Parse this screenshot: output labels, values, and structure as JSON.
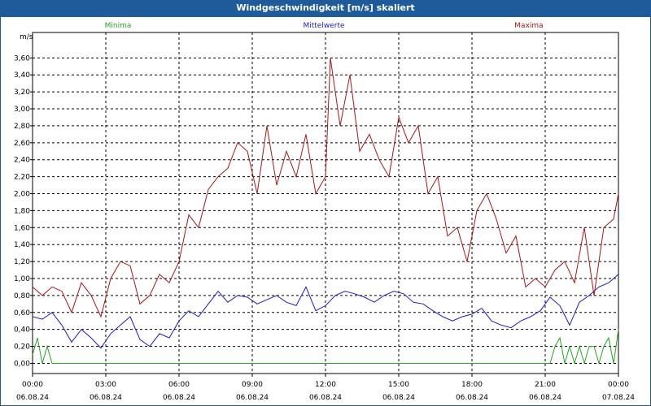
{
  "chart_data": {
    "type": "line",
    "title": "Windgeschwindigkeit [m/s] skaliert",
    "y_unit": "m/s",
    "ylim": [
      -0.12,
      3.9
    ],
    "y_ticks": [
      "0,00",
      "0,20",
      "0,40",
      "0,60",
      "0,80",
      "1,00",
      "1,20",
      "1,40",
      "1,60",
      "1,80",
      "2,00",
      "2,20",
      "2,40",
      "2,60",
      "2,80",
      "3,00",
      "3,20",
      "3,40",
      "3,60"
    ],
    "x_range": [
      "06.08.24 00:00",
      "07.08.24 00:00"
    ],
    "x_ticks": [
      {
        "time": "00:00",
        "date": "06.08.24"
      },
      {
        "time": "03:00",
        "date": "06.08.24"
      },
      {
        "time": "06:00",
        "date": "06.08.24"
      },
      {
        "time": "09:00",
        "date": "06.08.24"
      },
      {
        "time": "12:00",
        "date": "06.08.24"
      },
      {
        "time": "15:00",
        "date": "06.08.24"
      },
      {
        "time": "18:00",
        "date": "06.08.24"
      },
      {
        "time": "21:00",
        "date": "06.08.24"
      },
      {
        "time": "00:00",
        "date": "07.08.24"
      }
    ],
    "grid": true,
    "legend_position": "top",
    "series": [
      {
        "name": "Minima",
        "color": "#22aa22",
        "x": [
          "06.08.24 00:00",
          "06.08.24 00:12",
          "06.08.24 00:24",
          "06.08.24 00:36",
          "06.08.24 00:48",
          "06.08.24 01:00",
          "06.08.24 01:30",
          "06.08.24 02:00",
          "06.08.24 03:00",
          "06.08.24 06:00",
          "06.08.24 09:00",
          "06.08.24 12:00",
          "06.08.24 15:00",
          "06.08.24 18:00",
          "06.08.24 21:00",
          "06.08.24 21:12",
          "06.08.24 21:24",
          "06.08.24 21:36",
          "06.08.24 21:48",
          "06.08.24 22:00",
          "06.08.24 22:12",
          "06.08.24 22:24",
          "06.08.24 22:36",
          "06.08.24 22:48",
          "06.08.24 23:00",
          "06.08.24 23:12",
          "06.08.24 23:24",
          "06.08.24 23:36",
          "06.08.24 23:48",
          "07.08.24 00:00"
        ],
        "y": [
          0.1,
          0.3,
          0.0,
          0.2,
          0.0,
          0.0,
          0.0,
          0.0,
          0.0,
          0.0,
          0.0,
          0.0,
          0.0,
          0.0,
          0.0,
          0.0,
          0.2,
          0.3,
          0.0,
          0.2,
          0.0,
          0.2,
          0.0,
          0.2,
          0.2,
          0.0,
          0.2,
          0.3,
          0.0,
          0.4
        ]
      },
      {
        "name": "Mittelwerte",
        "color": "#1a1acc",
        "x": [
          "06.08.24 00:00",
          "06.08.24 00:24",
          "06.08.24 00:48",
          "06.08.24 01:12",
          "06.08.24 01:36",
          "06.08.24 02:00",
          "06.08.24 02:24",
          "06.08.24 02:48",
          "06.08.24 03:12",
          "06.08.24 03:36",
          "06.08.24 04:00",
          "06.08.24 04:24",
          "06.08.24 04:48",
          "06.08.24 05:12",
          "06.08.24 05:36",
          "06.08.24 06:00",
          "06.08.24 06:24",
          "06.08.24 06:48",
          "06.08.24 07:12",
          "06.08.24 07:36",
          "06.08.24 08:00",
          "06.08.24 08:24",
          "06.08.24 08:48",
          "06.08.24 09:12",
          "06.08.24 09:36",
          "06.08.24 10:00",
          "06.08.24 10:24",
          "06.08.24 10:48",
          "06.08.24 11:12",
          "06.08.24 11:36",
          "06.08.24 12:00",
          "06.08.24 12:24",
          "06.08.24 12:48",
          "06.08.24 13:12",
          "06.08.24 13:36",
          "06.08.24 14:00",
          "06.08.24 14:24",
          "06.08.24 14:48",
          "06.08.24 15:12",
          "06.08.24 15:36",
          "06.08.24 16:00",
          "06.08.24 16:24",
          "06.08.24 16:48",
          "06.08.24 17:12",
          "06.08.24 17:36",
          "06.08.24 18:00",
          "06.08.24 18:24",
          "06.08.24 18:48",
          "06.08.24 19:12",
          "06.08.24 19:36",
          "06.08.24 20:00",
          "06.08.24 20:24",
          "06.08.24 20:48",
          "06.08.24 21:12",
          "06.08.24 21:36",
          "06.08.24 22:00",
          "06.08.24 22:24",
          "06.08.24 22:48",
          "06.08.24 23:12",
          "06.08.24 23:36",
          "07.08.24 00:00"
        ],
        "y": [
          0.55,
          0.52,
          0.6,
          0.45,
          0.25,
          0.4,
          0.3,
          0.18,
          0.35,
          0.45,
          0.55,
          0.28,
          0.2,
          0.35,
          0.3,
          0.5,
          0.62,
          0.55,
          0.7,
          0.85,
          0.72,
          0.8,
          0.78,
          0.7,
          0.75,
          0.8,
          0.72,
          0.68,
          0.9,
          0.62,
          0.68,
          0.8,
          0.85,
          0.82,
          0.78,
          0.72,
          0.8,
          0.85,
          0.82,
          0.72,
          0.7,
          0.62,
          0.55,
          0.5,
          0.55,
          0.58,
          0.65,
          0.5,
          0.45,
          0.42,
          0.5,
          0.55,
          0.62,
          0.78,
          0.68,
          0.45,
          0.72,
          0.8,
          0.9,
          0.95,
          1.05
        ]
      },
      {
        "name": "Maxima",
        "color": "#aa1515",
        "x": [
          "06.08.24 00:00",
          "06.08.24 00:24",
          "06.08.24 00:48",
          "06.08.24 01:12",
          "06.08.24 01:36",
          "06.08.24 02:00",
          "06.08.24 02:24",
          "06.08.24 02:48",
          "06.08.24 03:12",
          "06.08.24 03:36",
          "06.08.24 04:00",
          "06.08.24 04:24",
          "06.08.24 04:48",
          "06.08.24 05:12",
          "06.08.24 05:36",
          "06.08.24 06:00",
          "06.08.24 06:24",
          "06.08.24 06:48",
          "06.08.24 07:12",
          "06.08.24 07:36",
          "06.08.24 08:00",
          "06.08.24 08:24",
          "06.08.24 08:48",
          "06.08.24 09:12",
          "06.08.24 09:36",
          "06.08.24 10:00",
          "06.08.24 10:24",
          "06.08.24 10:48",
          "06.08.24 11:12",
          "06.08.24 11:36",
          "06.08.24 12:00",
          "06.08.24 12:12",
          "06.08.24 12:36",
          "06.08.24 13:00",
          "06.08.24 13:24",
          "06.08.24 13:48",
          "06.08.24 14:12",
          "06.08.24 14:36",
          "06.08.24 15:00",
          "06.08.24 15:24",
          "06.08.24 15:48",
          "06.08.24 16:12",
          "06.08.24 16:36",
          "06.08.24 17:00",
          "06.08.24 17:24",
          "06.08.24 17:48",
          "06.08.24 18:12",
          "06.08.24 18:36",
          "06.08.24 19:00",
          "06.08.24 19:24",
          "06.08.24 19:48",
          "06.08.24 20:12",
          "06.08.24 20:36",
          "06.08.24 21:00",
          "06.08.24 21:24",
          "06.08.24 21:48",
          "06.08.24 22:12",
          "06.08.24 22:36",
          "06.08.24 23:00",
          "06.08.24 23:24",
          "06.08.24 23:48",
          "07.08.24 00:00"
        ],
        "y": [
          0.9,
          0.8,
          0.9,
          0.85,
          0.6,
          0.95,
          0.8,
          0.55,
          1.0,
          1.2,
          1.15,
          0.7,
          0.8,
          1.05,
          0.95,
          1.2,
          1.75,
          1.6,
          2.05,
          2.2,
          2.3,
          2.6,
          2.5,
          2.0,
          2.8,
          2.1,
          2.5,
          2.2,
          2.7,
          2.0,
          2.2,
          3.6,
          2.8,
          3.4,
          2.5,
          2.7,
          2.4,
          2.2,
          2.9,
          2.6,
          2.8,
          2.0,
          2.2,
          1.5,
          1.6,
          1.2,
          1.8,
          2.0,
          1.7,
          1.3,
          1.5,
          0.9,
          1.0,
          0.9,
          1.1,
          1.2,
          0.95,
          1.6,
          0.8,
          1.6,
          1.7,
          2.0
        ]
      }
    ]
  }
}
